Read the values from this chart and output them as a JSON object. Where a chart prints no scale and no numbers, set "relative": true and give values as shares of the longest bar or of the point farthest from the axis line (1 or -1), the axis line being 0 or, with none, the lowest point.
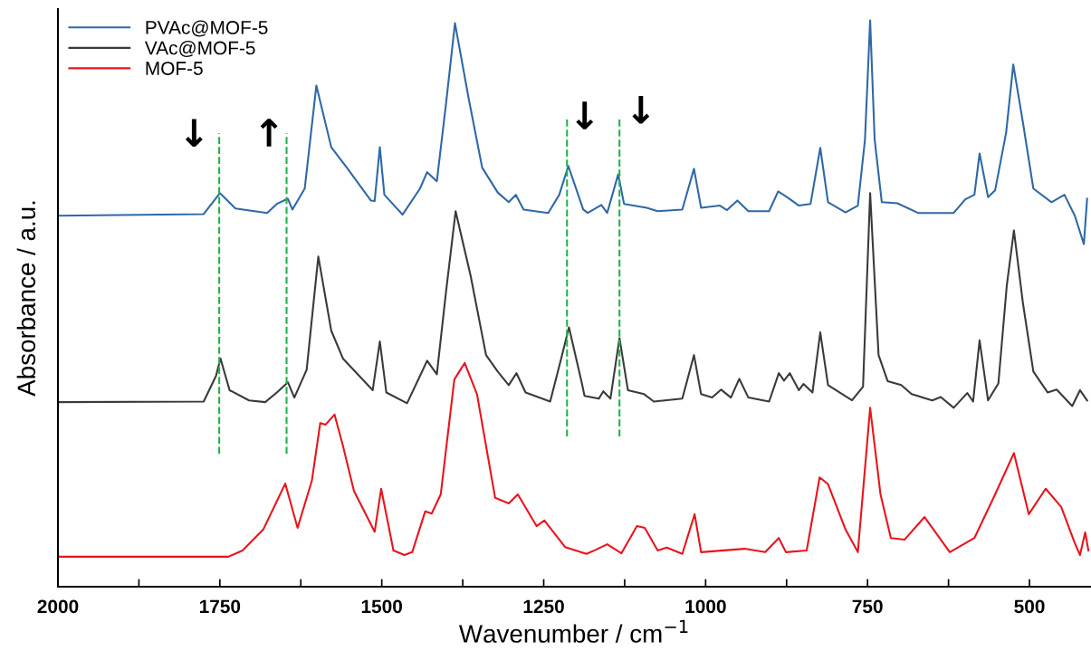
{
  "chart_data": {
    "type": "line",
    "relative": true,
    "xlabel": "Wavenumber / cm$^{−1}$",
    "ylabel": "Absorbance / a.u.",
    "xlim": [
      2000,
      405
    ],
    "xticks": [
      2000,
      {
        "value": 1875,
        "label": null
      },
      1750,
      {
        "value": 1625,
        "label": null
      },
      1500,
      {
        "value": 1375,
        "label": null
      },
      1250,
      {
        "value": 1125,
        "label": null
      },
      1000,
      {
        "value": 875,
        "label": null
      },
      750,
      {
        "value": 625,
        "label": null
      },
      500
    ],
    "tick_labels": "x",
    "grid": false,
    "legend": "top left",
    "marker": "none",
    "line_style": "solid",
    "series": [
      {
        "name": "PVAc@MOF-5",
        "color": "#2f68a6",
        "x": [
          2000,
          1775,
          1750,
          1726,
          1677,
          1662,
          1645,
          1638,
          1619,
          1601,
          1578,
          1554,
          1517,
          1511,
          1503,
          1496,
          1468,
          1441,
          1430,
          1415,
          1401,
          1387,
          1366,
          1345,
          1321,
          1304,
          1293,
          1281,
          1243,
          1226,
          1212,
          1189,
          1182,
          1161,
          1152,
          1135,
          1126,
          1091,
          1074,
          1036,
          1018,
          1007,
          978,
          967,
          951,
          934,
          902,
          888,
          873,
          856,
          838,
          823,
          811,
          784,
          765,
          754,
          746,
          739,
          728,
          704,
          672,
          617,
          599,
          585,
          577,
          564,
          553,
          536,
          525,
          510,
          494,
          466,
          446,
          430,
          416,
          411
        ],
        "values": [
          0.655,
          0.658,
          0.695,
          0.668,
          0.66,
          0.676,
          0.685,
          0.666,
          0.703,
          0.885,
          0.776,
          0.74,
          0.682,
          0.681,
          0.776,
          0.692,
          0.657,
          0.703,
          0.732,
          0.716,
          0.851,
          0.995,
          0.863,
          0.74,
          0.696,
          0.679,
          0.692,
          0.666,
          0.66,
          0.692,
          0.743,
          0.666,
          0.66,
          0.674,
          0.66,
          0.728,
          0.676,
          0.669,
          0.663,
          0.666,
          0.738,
          0.669,
          0.673,
          0.665,
          0.682,
          0.663,
          0.663,
          0.698,
          0.687,
          0.673,
          0.676,
          0.775,
          0.679,
          0.661,
          0.673,
          0.789,
          1,
          0.789,
          0.679,
          0.677,
          0.66,
          0.66,
          0.684,
          0.692,
          0.765,
          0.688,
          0.7,
          0.802,
          0.922,
          0.819,
          0.703,
          0.679,
          0.692,
          0.655,
          0.605,
          0.685
        ]
      },
      {
        "name": "VAc@MOF-5",
        "color": "#3a3a3a",
        "x": [
          2000,
          1775,
          1756,
          1749,
          1735,
          1705,
          1680,
          1662,
          1645,
          1635,
          1616,
          1598,
          1578,
          1560,
          1514,
          1503,
          1493,
          1461,
          1441,
          1430,
          1415,
          1401,
          1386,
          1363,
          1339,
          1321,
          1304,
          1292,
          1278,
          1240,
          1223,
          1211,
          1191,
          1187,
          1165,
          1158,
          1147,
          1133,
          1120,
          1095,
          1080,
          1036,
          1018,
          1007,
          990,
          976,
          961,
          948,
          934,
          902,
          887,
          879,
          870,
          856,
          849,
          835,
          823,
          811,
          774,
          757,
          746,
          733,
          719,
          698,
          682,
          650,
          637,
          617,
          596,
          587,
          577,
          564,
          548,
          535,
          524,
          510,
          494,
          472,
          458,
          434,
          422,
          411
        ],
        "values": [
          0.326,
          0.327,
          0.372,
          0.403,
          0.347,
          0.329,
          0.326,
          0.343,
          0.361,
          0.334,
          0.383,
          0.583,
          0.452,
          0.403,
          0.347,
          0.433,
          0.343,
          0.324,
          0.372,
          0.399,
          0.375,
          0.519,
          0.663,
          0.55,
          0.409,
          0.38,
          0.356,
          0.377,
          0.343,
          0.327,
          0.403,
          0.458,
          0.359,
          0.337,
          0.332,
          0.345,
          0.332,
          0.439,
          0.347,
          0.34,
          0.327,
          0.332,
          0.409,
          0.34,
          0.334,
          0.348,
          0.334,
          0.367,
          0.334,
          0.327,
          0.377,
          0.364,
          0.377,
          0.347,
          0.358,
          0.343,
          0.449,
          0.356,
          0.329,
          0.353,
          0.695,
          0.409,
          0.363,
          0.356,
          0.34,
          0.329,
          0.335,
          0.316,
          0.342,
          0.327,
          0.435,
          0.329,
          0.359,
          0.532,
          0.629,
          0.5,
          0.38,
          0.343,
          0.348,
          0.319,
          0.347,
          0.329
        ]
      },
      {
        "name": "MOF-5",
        "color": "#e8141c",
        "x": [
          2000,
          1737,
          1715,
          1683,
          1665,
          1649,
          1630,
          1608,
          1595,
          1587,
          1573,
          1560,
          1543,
          1511,
          1501,
          1482,
          1465,
          1453,
          1433,
          1423,
          1409,
          1388,
          1372,
          1353,
          1325,
          1304,
          1290,
          1261,
          1249,
          1217,
          1184,
          1170,
          1152,
          1130,
          1106,
          1094,
          1074,
          1060,
          1036,
          1017,
          1007,
          940,
          908,
          887,
          876,
          844,
          824,
          811,
          784,
          765,
          746,
          730,
          714,
          693,
          662,
          623,
          585,
          553,
          524,
          501,
          475,
          451,
          430,
          422,
          414,
          409
        ],
        "values": [
          0.053,
          0.053,
          0.064,
          0.101,
          0.144,
          0.182,
          0.104,
          0.187,
          0.289,
          0.286,
          0.304,
          0.249,
          0.169,
          0.097,
          0.173,
          0.064,
          0.056,
          0.061,
          0.133,
          0.129,
          0.163,
          0.366,
          0.395,
          0.34,
          0.157,
          0.147,
          0.163,
          0.107,
          0.117,
          0.07,
          0.058,
          0.065,
          0.075,
          0.059,
          0.107,
          0.104,
          0.064,
          0.069,
          0.058,
          0.128,
          0.061,
          0.067,
          0.061,
          0.086,
          0.061,
          0.064,
          0.193,
          0.181,
          0.101,
          0.061,
          0.316,
          0.163,
          0.086,
          0.083,
          0.123,
          0.061,
          0.086,
          0.163,
          0.236,
          0.128,
          0.173,
          0.141,
          0.077,
          0.056,
          0.096,
          0.064
        ]
      }
    ],
    "ref_lines": [
      {
        "axis": "x",
        "value": 1751,
        "color": "#22b14c",
        "line_style": "dashed"
      },
      {
        "axis": "x",
        "value": 1647,
        "color": "#22b14c",
        "line_style": "dashed"
      },
      {
        "axis": "x",
        "value": 1214,
        "color": "#22b14c",
        "line_style": "dashed"
      },
      {
        "axis": "x",
        "value": 1133,
        "color": "#22b14c",
        "line_style": "dashed"
      }
    ],
    "annotations": [
      "↓",
      "↑",
      "↓",
      "↓"
    ]
  }
}
